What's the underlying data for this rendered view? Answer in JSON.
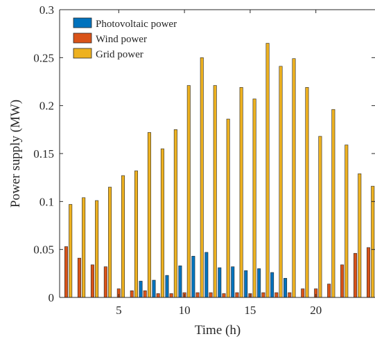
{
  "chart_data": {
    "type": "bar",
    "xlabel": "Time (h)",
    "ylabel": "Power supply (MW)",
    "xlim": [
      0.5,
      24.5
    ],
    "ylim": [
      0,
      0.3
    ],
    "xticks": [
      5,
      10,
      15,
      20
    ],
    "yticks": [
      0,
      0.05,
      0.1,
      0.15,
      0.2,
      0.25,
      0.3
    ],
    "ytick_labels": [
      "0",
      "0.05",
      "0.1",
      "0.15",
      "0.2",
      "0.25",
      "0.3"
    ],
    "grid": false,
    "legend_position": "top-left",
    "x": [
      1,
      2,
      3,
      4,
      5,
      6,
      7,
      8,
      9,
      10,
      11,
      12,
      13,
      14,
      15,
      16,
      17,
      18,
      19,
      20,
      21,
      22,
      23,
      24
    ],
    "series": [
      {
        "name": "Photovoltaic power",
        "color": "#0072BD",
        "values": [
          0,
          0,
          0,
          0,
          0,
          0,
          0.017,
          0.018,
          0.023,
          0.033,
          0.043,
          0.047,
          0.031,
          0.032,
          0.028,
          0.03,
          0.026,
          0.02,
          0,
          0,
          0,
          0,
          0,
          0
        ]
      },
      {
        "name": "Wind power",
        "color": "#D95319",
        "values": [
          0.053,
          0.041,
          0.034,
          0.032,
          0.009,
          0.007,
          0.007,
          0.004,
          0.004,
          0.005,
          0.005,
          0.005,
          0.004,
          0.005,
          0.004,
          0.005,
          0.005,
          0.005,
          0.009,
          0.009,
          0.014,
          0.034,
          0.046,
          0.052
        ]
      },
      {
        "name": "Grid power",
        "color": "#EDB120",
        "values": [
          0.097,
          0.104,
          0.101,
          0.115,
          0.127,
          0.132,
          0.172,
          0.155,
          0.175,
          0.221,
          0.25,
          0.221,
          0.186,
          0.219,
          0.207,
          0.265,
          0.241,
          0.249,
          0.219,
          0.168,
          0.196,
          0.159,
          0.129,
          0.116
        ]
      }
    ]
  }
}
